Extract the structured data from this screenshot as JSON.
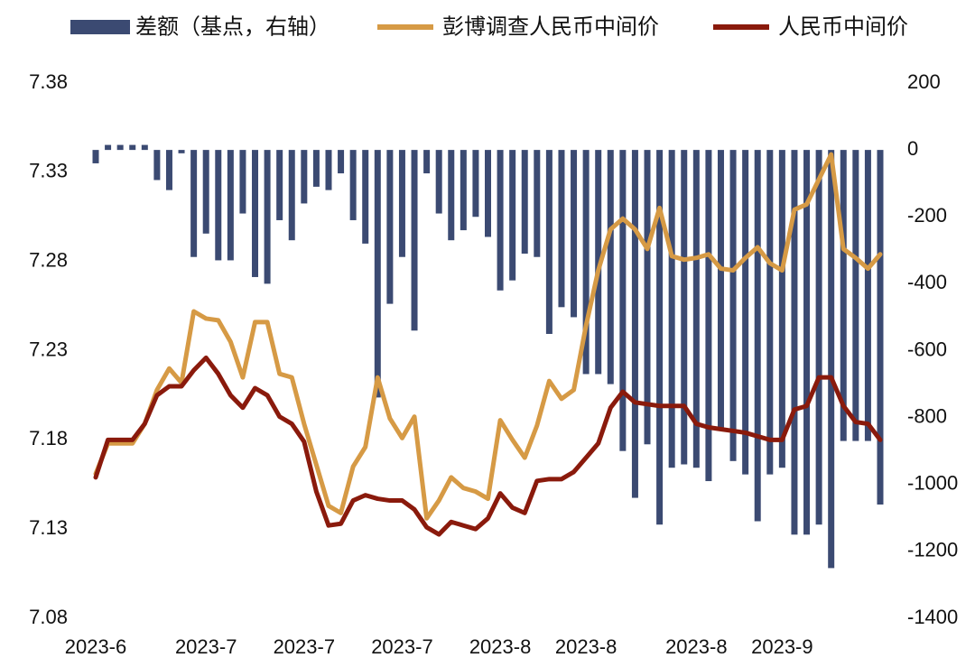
{
  "chart_data": {
    "type": "combo",
    "categories": [
      "2023-6",
      null,
      null,
      null,
      null,
      null,
      null,
      null,
      null,
      "2023-7",
      null,
      null,
      null,
      null,
      null,
      null,
      null,
      "2023-7",
      null,
      null,
      null,
      null,
      null,
      null,
      null,
      "2023-7",
      null,
      null,
      null,
      null,
      null,
      null,
      null,
      "2023-8",
      null,
      null,
      null,
      null,
      null,
      null,
      "2023-8",
      null,
      null,
      null,
      null,
      null,
      null,
      null,
      null,
      "2023-8",
      null,
      null,
      null,
      null,
      null,
      null,
      "2023-9",
      null,
      null,
      null,
      null,
      null,
      null,
      null,
      null
    ],
    "series": [
      {
        "name": "差额（基点，右轴）",
        "type": "bar",
        "axis": "y2",
        "color": "#3b4a72",
        "values": [
          -40,
          15,
          15,
          15,
          15,
          -90,
          -120,
          -10,
          -320,
          -250,
          -330,
          -330,
          -190,
          -380,
          -400,
          -210,
          -270,
          -160,
          -110,
          -120,
          -70,
          -210,
          -280,
          -740,
          -460,
          -320,
          -540,
          -70,
          -190,
          -270,
          -240,
          -200,
          -260,
          -420,
          -390,
          -310,
          -320,
          -550,
          -470,
          -500,
          -670,
          -670,
          -700,
          -900,
          -1040,
          -880,
          -1120,
          -950,
          -940,
          -950,
          -990,
          -840,
          -930,
          -970,
          -1110,
          -970,
          -950,
          -1150,
          -1150,
          -1120,
          -1250,
          -870,
          -870,
          -870,
          -1060
        ]
      },
      {
        "name": "彭博调查人民币中间价",
        "type": "line",
        "color": "#d69a45",
        "values": [
          7.161,
          7.178,
          7.178,
          7.178,
          7.189,
          7.208,
          7.22,
          7.212,
          7.252,
          7.248,
          7.247,
          7.235,
          7.215,
          7.246,
          7.246,
          7.217,
          7.215,
          7.189,
          7.166,
          7.143,
          7.139,
          7.165,
          7.176,
          7.215,
          7.192,
          7.181,
          7.193,
          7.136,
          7.146,
          7.159,
          7.153,
          7.151,
          7.147,
          7.191,
          7.18,
          7.17,
          7.188,
          7.213,
          7.203,
          7.208,
          7.244,
          7.275,
          7.298,
          7.304,
          7.298,
          7.287,
          7.31,
          7.283,
          7.281,
          7.282,
          7.284,
          7.276,
          7.275,
          7.282,
          7.288,
          7.279,
          7.275,
          7.309,
          7.312,
          7.326,
          7.34,
          7.287,
          7.282,
          7.276,
          7.284
        ]
      },
      {
        "name": "人民币中间价",
        "type": "line",
        "color": "#8a1a0c",
        "values": [
          7.159,
          7.18,
          7.18,
          7.18,
          7.189,
          7.205,
          7.21,
          7.21,
          7.219,
          7.226,
          7.217,
          7.205,
          7.198,
          7.209,
          7.205,
          7.193,
          7.189,
          7.179,
          7.151,
          7.132,
          7.133,
          7.146,
          7.149,
          7.147,
          7.146,
          7.146,
          7.141,
          7.131,
          7.127,
          7.134,
          7.132,
          7.13,
          7.136,
          7.15,
          7.142,
          7.139,
          7.157,
          7.158,
          7.158,
          7.162,
          7.17,
          7.178,
          7.198,
          7.207,
          7.201,
          7.2,
          7.199,
          7.199,
          7.199,
          7.189,
          7.187,
          7.186,
          7.185,
          7.184,
          7.182,
          7.18,
          7.18,
          7.197,
          7.199,
          7.215,
          7.215,
          7.199,
          7.19,
          7.189,
          7.18
        ]
      }
    ],
    "ylim": [
      7.08,
      7.38
    ],
    "yticks": [
      7.08,
      7.13,
      7.18,
      7.23,
      7.28,
      7.33,
      7.38
    ],
    "y2lim": [
      -1400,
      200
    ],
    "y2ticks": [
      -1400,
      -1200,
      -1000,
      -800,
      -600,
      -400,
      -200,
      0,
      200
    ],
    "grid": false,
    "legend": "top"
  }
}
